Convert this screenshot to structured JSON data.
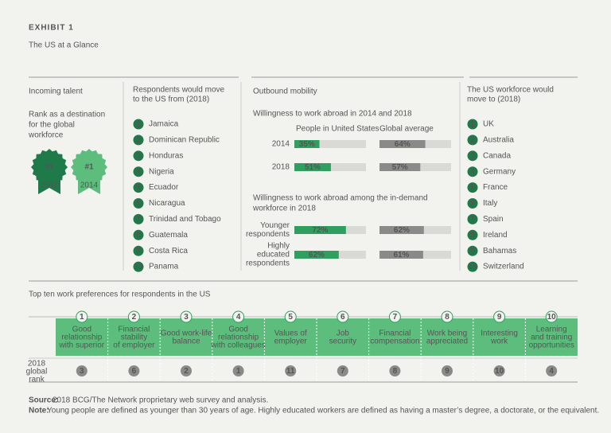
{
  "header": {
    "exhibit": "EXHIBIT 1",
    "title": "The US at a Glance"
  },
  "incoming": {
    "heading": "Incoming talent",
    "rank_text": [
      "Rank as a destination",
      "for the global",
      "workforce"
    ],
    "badges": [
      {
        "rank": "#1",
        "year": "2018"
      },
      {
        "rank": "#1",
        "year": "2014"
      }
    ]
  },
  "from_list": {
    "heading": [
      "Respondents would move",
      "to the US from (2018)"
    ],
    "items": [
      {
        "n": "1",
        "name": "Jamaica"
      },
      {
        "n": "2",
        "name": "Dominican Republic"
      },
      {
        "n": "3",
        "name": "Honduras"
      },
      {
        "n": "4",
        "name": "Nigeria"
      },
      {
        "n": "5",
        "name": "Ecuador"
      },
      {
        "n": "6",
        "name": "Nicaragua"
      },
      {
        "n": "7",
        "name": "Trinidad and Tobago"
      },
      {
        "n": "8",
        "name": "Guatemala"
      },
      {
        "n": "9",
        "name": "Costa Rica"
      },
      {
        "n": "10",
        "name": "Panama"
      }
    ]
  },
  "mobility": {
    "heading": "Outbound mobility",
    "section1": {
      "title": [
        "Willingness to work abroad in 2014 and 2018"
      ],
      "columns": [
        "People in United States",
        "Global average"
      ],
      "rows": [
        {
          "label": [
            "2014"
          ],
          "values": [
            35,
            64
          ],
          "value_labels": [
            "35%",
            "64%"
          ]
        },
        {
          "label": [
            "2018"
          ],
          "values": [
            51,
            57
          ],
          "value_labels": [
            "51%",
            "57%"
          ]
        }
      ]
    },
    "section2": {
      "title": [
        "Willingness to work abroad among the in-demand",
        "workforce in 2018"
      ],
      "rows": [
        {
          "label": [
            "Younger",
            "respondents"
          ],
          "values": [
            72,
            62
          ],
          "value_labels": [
            "72%",
            "62%"
          ]
        },
        {
          "label": [
            "Highly",
            "educated",
            "respondents"
          ],
          "values": [
            62,
            61
          ],
          "value_labels": [
            "62%",
            "61%"
          ]
        }
      ]
    }
  },
  "to_list": {
    "heading": [
      "The US workforce would",
      "move to (2018)"
    ],
    "items": [
      {
        "n": "1",
        "name": "UK"
      },
      {
        "n": "2",
        "name": "Australia"
      },
      {
        "n": "3",
        "name": "Canada"
      },
      {
        "n": "4",
        "name": "Germany"
      },
      {
        "n": "5",
        "name": "France"
      },
      {
        "n": "6",
        "name": "Italy"
      },
      {
        "n": "7",
        "name": "Spain"
      },
      {
        "n": "8",
        "name": "Ireland"
      },
      {
        "n": "9",
        "name": "Bahamas"
      },
      {
        "n": "10",
        "name": "Switzerland"
      }
    ]
  },
  "preferences": {
    "heading": "Top ten work preferences for respondents in the US",
    "row_label": [
      "2018",
      "global",
      "rank"
    ],
    "items": [
      {
        "rank": "1",
        "label": [
          "Good",
          "relationship",
          "with superior"
        ],
        "global_rank": "3"
      },
      {
        "rank": "2",
        "label": [
          "Financial",
          "stability",
          "of employer"
        ],
        "global_rank": "6"
      },
      {
        "rank": "3",
        "label": [
          "Good work-life",
          "balance"
        ],
        "global_rank": "2"
      },
      {
        "rank": "4",
        "label": [
          "Good",
          "relationship",
          "with colleagues"
        ],
        "global_rank": "1"
      },
      {
        "rank": "5",
        "label": [
          "Values of",
          "employer"
        ],
        "global_rank": "11"
      },
      {
        "rank": "6",
        "label": [
          "Job",
          "security"
        ],
        "global_rank": "7"
      },
      {
        "rank": "7",
        "label": [
          "Financial",
          "compensation"
        ],
        "global_rank": "8"
      },
      {
        "rank": "8",
        "label": [
          "Work being",
          "appreciated"
        ],
        "global_rank": "9"
      },
      {
        "rank": "9",
        "label": [
          "Interesting",
          "work"
        ],
        "global_rank": "10"
      },
      {
        "rank": "10",
        "label": [
          "Learning",
          "and training",
          "opportunities"
        ],
        "global_rank": "4"
      }
    ]
  },
  "footer": {
    "source_label": "Source:",
    "source": "2018 BCG/The Network proprietary web survey and analysis.",
    "note_label": "Note:",
    "note": "Young people are defined as younger than 30 years of age. Highly educated workers are defined as having a master’s degree, a doctorate, or the equivalent."
  }
}
